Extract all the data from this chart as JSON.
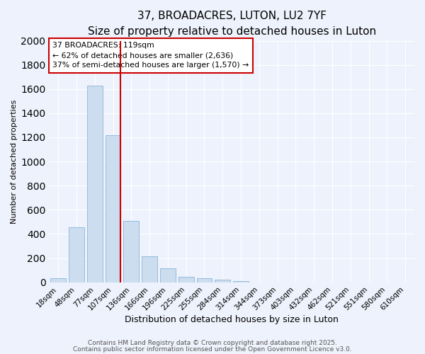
{
  "title": "37, BROADACRES, LUTON, LU2 7YF",
  "subtitle": "Size of property relative to detached houses in Luton",
  "xlabel": "Distribution of detached houses by size in Luton",
  "ylabel": "Number of detached properties",
  "bar_labels": [
    "18sqm",
    "48sqm",
    "77sqm",
    "107sqm",
    "136sqm",
    "166sqm",
    "196sqm",
    "225sqm",
    "255sqm",
    "284sqm",
    "314sqm",
    "344sqm",
    "373sqm",
    "403sqm",
    "432sqm",
    "462sqm",
    "521sqm",
    "551sqm",
    "580sqm",
    "610sqm"
  ],
  "bar_values": [
    30,
    455,
    1625,
    1215,
    510,
    215,
    115,
    45,
    30,
    20,
    10,
    0,
    0,
    0,
    0,
    0,
    0,
    0,
    0,
    0
  ],
  "bar_color": "#ccddf0",
  "bar_edge_color": "#8ab4d9",
  "vline_color": "#cc0000",
  "ylim": [
    0,
    2000
  ],
  "yticks": [
    0,
    200,
    400,
    600,
    800,
    1000,
    1200,
    1400,
    1600,
    1800,
    2000
  ],
  "annotation_title": "37 BROADACRES: 119sqm",
  "annotation_line1": "← 62% of detached houses are smaller (2,636)",
  "annotation_line2": "37% of semi-detached houses are larger (1,570) →",
  "annotation_box_facecolor": "#ffffff",
  "annotation_box_edgecolor": "#cc0000",
  "footer_line1": "Contains HM Land Registry data © Crown copyright and database right 2025.",
  "footer_line2": "Contains public sector information licensed under the Open Government Licence v3.0.",
  "background_color": "#eef2fc",
  "grid_color": "#ffffff",
  "title_fontsize": 11,
  "subtitle_fontsize": 9,
  "tick_label_fontsize": 7.5,
  "ylabel_fontsize": 8,
  "xlabel_fontsize": 9,
  "footer_fontsize": 6.5,
  "footer_color": "#555555"
}
